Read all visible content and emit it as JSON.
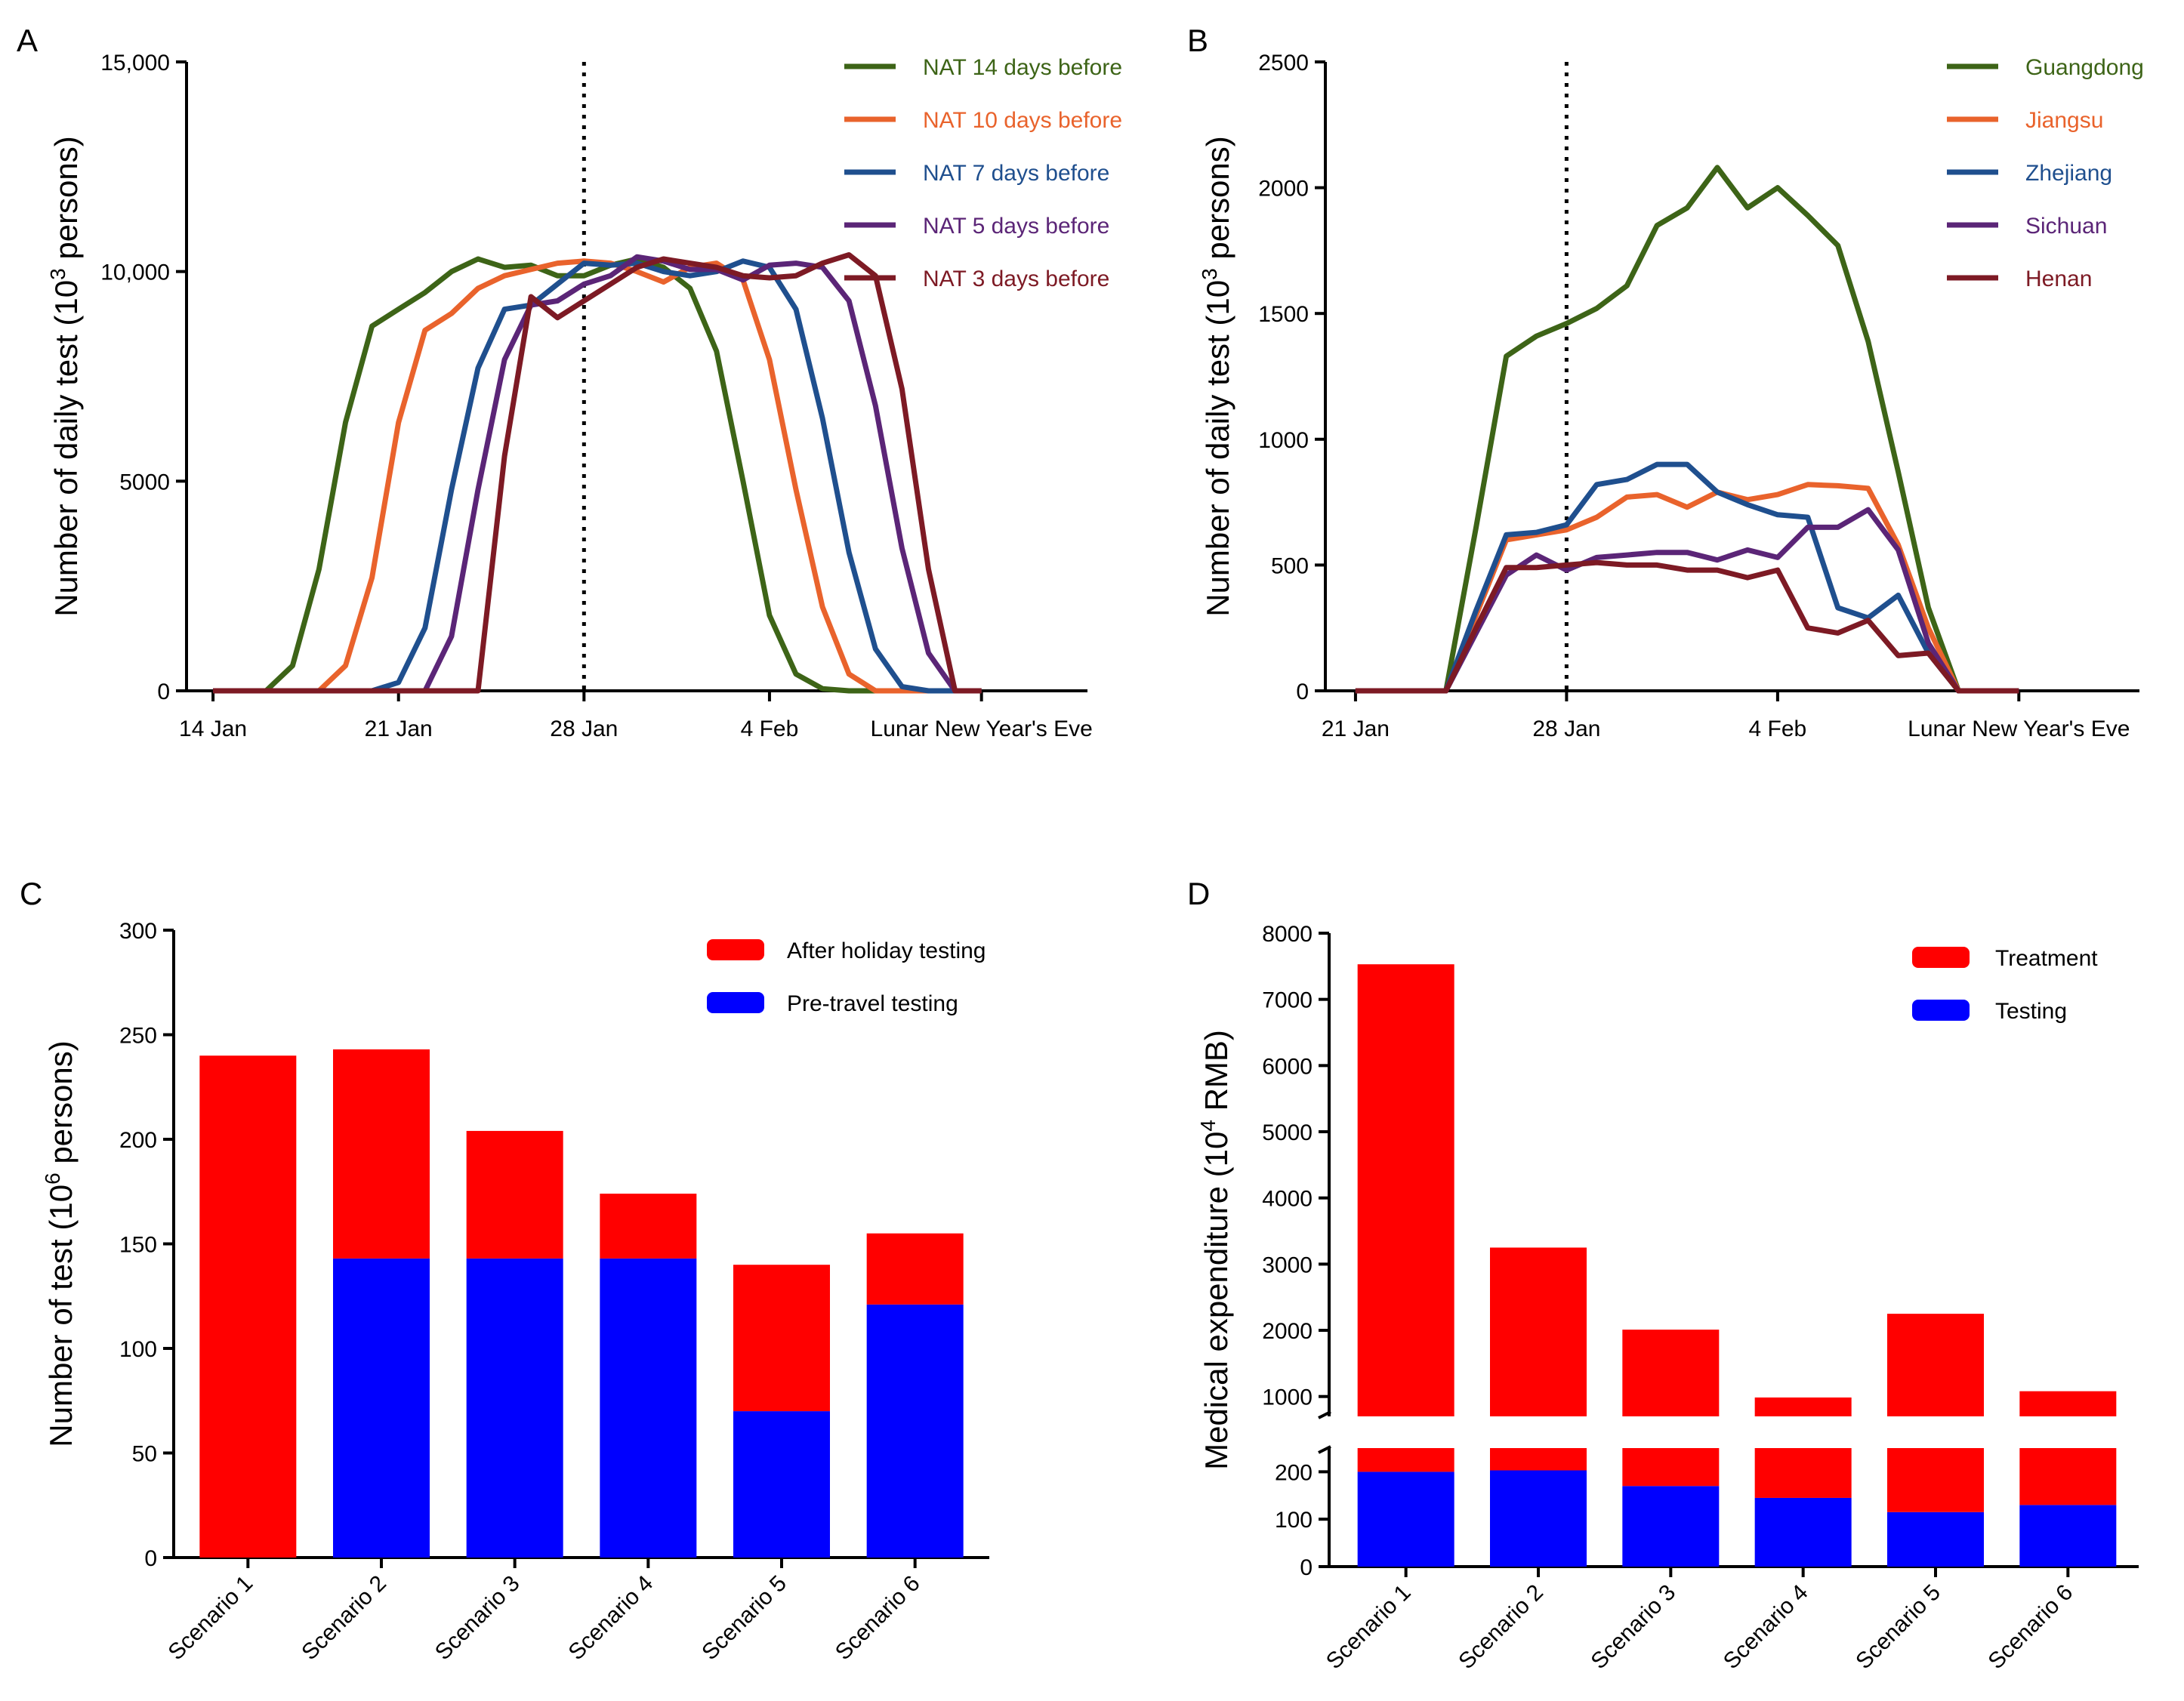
{
  "panels": {
    "A": {
      "label": "A",
      "ylabel_main": "Number of daily test (10",
      "ylabel_exp": "3",
      "ylabel_tail": " persons)",
      "yticks": [
        {
          "v": 0,
          "label": "0"
        },
        {
          "v": 5000,
          "label": "5000"
        },
        {
          "v": 10000,
          "label": "10,000"
        },
        {
          "v": 15000,
          "label": "15,000"
        }
      ],
      "xticks": [
        {
          "v": 0,
          "label": "14 Jan"
        },
        {
          "v": 7,
          "label": "21 Jan"
        },
        {
          "v": 14,
          "label": "28 Jan"
        },
        {
          "v": 21,
          "label": "4 Feb"
        },
        {
          "v": 29,
          "label": "Lunar New Year's Eve"
        }
      ]
    },
    "B": {
      "label": "B",
      "ylabel_main": "Number of daily test (10",
      "ylabel_exp": "3",
      "ylabel_tail": " persons)",
      "yticks": [
        {
          "v": 0,
          "label": "0"
        },
        {
          "v": 500,
          "label": "500"
        },
        {
          "v": 1000,
          "label": "1000"
        },
        {
          "v": 1500,
          "label": "1500"
        },
        {
          "v": 2000,
          "label": "2000"
        },
        {
          "v": 2500,
          "label": "2500"
        }
      ],
      "xticks": [
        {
          "v": 0,
          "label": "21 Jan"
        },
        {
          "v": 7,
          "label": "28 Jan"
        },
        {
          "v": 14,
          "label": "4 Feb"
        },
        {
          "v": 22,
          "label": "Lunar New Year's Eve"
        }
      ]
    },
    "C": {
      "label": "C",
      "ylabel_main": "Number of test (10",
      "ylabel_exp": "6",
      "ylabel_tail": " persons)",
      "yticks": [
        0,
        50,
        100,
        150,
        200,
        250,
        300
      ]
    },
    "D": {
      "label": "D",
      "ylabel_main": "Medical expenditure (10",
      "ylabel_exp": "4",
      "ylabel_tail": " RMB)",
      "yticks_upper": [
        1000,
        2000,
        3000,
        4000,
        5000,
        6000,
        7000,
        8000
      ],
      "yticks_lower": [
        0,
        100,
        200
      ]
    }
  },
  "chart_data": [
    {
      "panel": "A",
      "type": "line",
      "title": "",
      "xlabel": "",
      "ylabel": "Number of daily test (10^3 persons)",
      "xlim": [
        -1,
        33
      ],
      "ylim": [
        0,
        15000
      ],
      "vline_x": 14,
      "legend_position": "top-right",
      "series": [
        {
          "name": "NAT 14 days before",
          "color": "#3d6417",
          "x": [
            0,
            1,
            2,
            3,
            4,
            5,
            6,
            7,
            8,
            9,
            10,
            11,
            12,
            13,
            14,
            15,
            16,
            17,
            18,
            19,
            20,
            21,
            22,
            23,
            24,
            25,
            26,
            27,
            28,
            29
          ],
          "values": [
            0,
            0,
            0,
            600,
            2900,
            6400,
            8700,
            9100,
            9500,
            10000,
            10300,
            10100,
            10150,
            9900,
            9900,
            10150,
            10300,
            10100,
            9600,
            8100,
            5000,
            1800,
            400,
            50,
            0,
            0,
            0,
            0,
            0,
            0
          ]
        },
        {
          "name": "NAT 10 days before",
          "color": "#e9632c",
          "x": [
            0,
            1,
            2,
            3,
            4,
            5,
            6,
            7,
            8,
            9,
            10,
            11,
            12,
            13,
            14,
            15,
            16,
            17,
            18,
            19,
            20,
            21,
            22,
            23,
            24,
            25,
            26,
            27,
            28,
            29
          ],
          "values": [
            0,
            0,
            0,
            0,
            0,
            600,
            2700,
            6400,
            8600,
            9000,
            9600,
            9900,
            10050,
            10200,
            10250,
            10200,
            10000,
            9750,
            10100,
            10200,
            9800,
            7900,
            4800,
            2000,
            400,
            0,
            0,
            0,
            0,
            0
          ]
        },
        {
          "name": "NAT 7 days before",
          "color": "#1f4f8e",
          "x": [
            0,
            1,
            2,
            3,
            4,
            5,
            6,
            7,
            8,
            9,
            10,
            11,
            12,
            13,
            14,
            15,
            16,
            17,
            18,
            19,
            20,
            21,
            22,
            23,
            24,
            25,
            26,
            27,
            28,
            29
          ],
          "values": [
            0,
            0,
            0,
            0,
            0,
            0,
            0,
            200,
            1500,
            4800,
            7700,
            9100,
            9200,
            9700,
            10200,
            10150,
            10200,
            10000,
            9900,
            10000,
            10250,
            10100,
            9100,
            6500,
            3300,
            1000,
            100,
            0,
            0,
            0
          ]
        },
        {
          "name": "NAT 5 days before",
          "color": "#5b2577",
          "x": [
            0,
            1,
            2,
            3,
            4,
            5,
            6,
            7,
            8,
            9,
            10,
            11,
            12,
            13,
            14,
            15,
            16,
            17,
            18,
            19,
            20,
            21,
            22,
            23,
            24,
            25,
            26,
            27,
            28,
            29
          ],
          "values": [
            0,
            0,
            0,
            0,
            0,
            0,
            0,
            0,
            0,
            1300,
            4800,
            7900,
            9200,
            9300,
            9700,
            9900,
            10350,
            10250,
            10050,
            10050,
            9800,
            10150,
            10200,
            10100,
            9300,
            6800,
            3400,
            900,
            0,
            0
          ]
        },
        {
          "name": "NAT 3 days before",
          "color": "#7d1a24",
          "x": [
            0,
            1,
            2,
            3,
            4,
            5,
            6,
            7,
            8,
            9,
            10,
            11,
            12,
            13,
            14,
            15,
            16,
            17,
            18,
            19,
            20,
            21,
            22,
            23,
            24,
            25,
            26,
            27,
            28,
            29
          ],
          "values": [
            0,
            0,
            0,
            0,
            0,
            0,
            0,
            0,
            0,
            0,
            0,
            5600,
            9400,
            8900,
            9300,
            9700,
            10100,
            10300,
            10200,
            10100,
            9900,
            9850,
            9900,
            10200,
            10400,
            9900,
            7200,
            2900,
            0,
            0
          ]
        }
      ]
    },
    {
      "panel": "B",
      "type": "line",
      "title": "",
      "xlabel": "",
      "ylabel": "Number of daily test (10^3 persons)",
      "xlim": [
        -1,
        26
      ],
      "ylim": [
        0,
        2500
      ],
      "vline_x": 7,
      "legend_position": "top-right",
      "series": [
        {
          "name": "Guangdong",
          "color": "#3d6417",
          "x": [
            0,
            1,
            2,
            3,
            4,
            5,
            6,
            7,
            8,
            9,
            10,
            11,
            12,
            13,
            14,
            15,
            16,
            17,
            18,
            19,
            20,
            21,
            22
          ],
          "values": [
            0,
            0,
            0,
            0,
            650,
            1330,
            1410,
            1460,
            1520,
            1610,
            1850,
            1920,
            2080,
            1920,
            2000,
            1890,
            1770,
            1390,
            870,
            330,
            0,
            0,
            0
          ]
        },
        {
          "name": "Jiangsu",
          "color": "#e9632c",
          "x": [
            0,
            1,
            2,
            3,
            4,
            5,
            6,
            7,
            8,
            9,
            10,
            11,
            12,
            13,
            14,
            15,
            16,
            17,
            18,
            19,
            20,
            21,
            22
          ],
          "values": [
            0,
            0,
            0,
            0,
            300,
            600,
            620,
            640,
            690,
            770,
            780,
            730,
            790,
            760,
            780,
            820,
            815,
            805,
            580,
            250,
            0,
            0,
            0
          ]
        },
        {
          "name": "Zhejiang",
          "color": "#1f4f8e",
          "x": [
            0,
            1,
            2,
            3,
            4,
            5,
            6,
            7,
            8,
            9,
            10,
            11,
            12,
            13,
            14,
            15,
            16,
            17,
            18,
            19,
            20,
            21,
            22
          ],
          "values": [
            0,
            0,
            0,
            0,
            320,
            620,
            630,
            660,
            820,
            840,
            900,
            900,
            790,
            740,
            700,
            690,
            330,
            290,
            380,
            150,
            0,
            0,
            0
          ]
        },
        {
          "name": "Sichuan",
          "color": "#5b2577",
          "x": [
            0,
            1,
            2,
            3,
            4,
            5,
            6,
            7,
            8,
            9,
            10,
            11,
            12,
            13,
            14,
            15,
            16,
            17,
            18,
            19,
            20,
            21,
            22
          ],
          "values": [
            0,
            0,
            0,
            0,
            230,
            460,
            540,
            480,
            530,
            540,
            550,
            550,
            520,
            560,
            530,
            650,
            650,
            720,
            560,
            190,
            0,
            0,
            0
          ]
        },
        {
          "name": "Henan",
          "color": "#7d1a24",
          "x": [
            0,
            1,
            2,
            3,
            4,
            5,
            6,
            7,
            8,
            9,
            10,
            11,
            12,
            13,
            14,
            15,
            16,
            17,
            18,
            19,
            20,
            21,
            22
          ],
          "values": [
            0,
            0,
            0,
            0,
            250,
            490,
            490,
            500,
            510,
            500,
            500,
            480,
            480,
            450,
            480,
            250,
            230,
            280,
            140,
            150,
            0,
            0,
            0
          ]
        }
      ]
    },
    {
      "panel": "C",
      "type": "bar",
      "stacked": true,
      "title": "",
      "xlabel": "",
      "ylabel": "Number of test (10^6 persons)",
      "ylim": [
        0,
        300
      ],
      "legend_position": "top-right",
      "categories": [
        "Scenario 1",
        "Scenario 2",
        "Scenario 3",
        "Scenario 4",
        "Scenario 5",
        "Scenario 6"
      ],
      "series": [
        {
          "name": "Pre-travel testing",
          "color": "#0000ff",
          "values": [
            0,
            143,
            143,
            143,
            70,
            121
          ]
        },
        {
          "name": "After holiday testing",
          "color": "#ff0000",
          "values": [
            240,
            100,
            61,
            31,
            70,
            34
          ]
        }
      ]
    },
    {
      "panel": "D",
      "type": "bar",
      "stacked": true,
      "title": "",
      "xlabel": "",
      "ylabel": "Medical expenditure (10^4 RMB)",
      "ylim": [
        0,
        8000
      ],
      "axis_break": [
        250,
        700
      ],
      "legend_position": "top-right",
      "categories": [
        "Scenario 1",
        "Scenario 2",
        "Scenario 3",
        "Scenario 4",
        "Scenario 5",
        "Scenario 6"
      ],
      "series": [
        {
          "name": "Testing",
          "color": "#0000ff",
          "values": [
            200,
            203,
            170,
            145,
            115,
            130
          ]
        },
        {
          "name": "Treatment",
          "color": "#ff0000",
          "values": [
            7330,
            3047,
            1840,
            840,
            2135,
            950
          ]
        }
      ]
    }
  ]
}
